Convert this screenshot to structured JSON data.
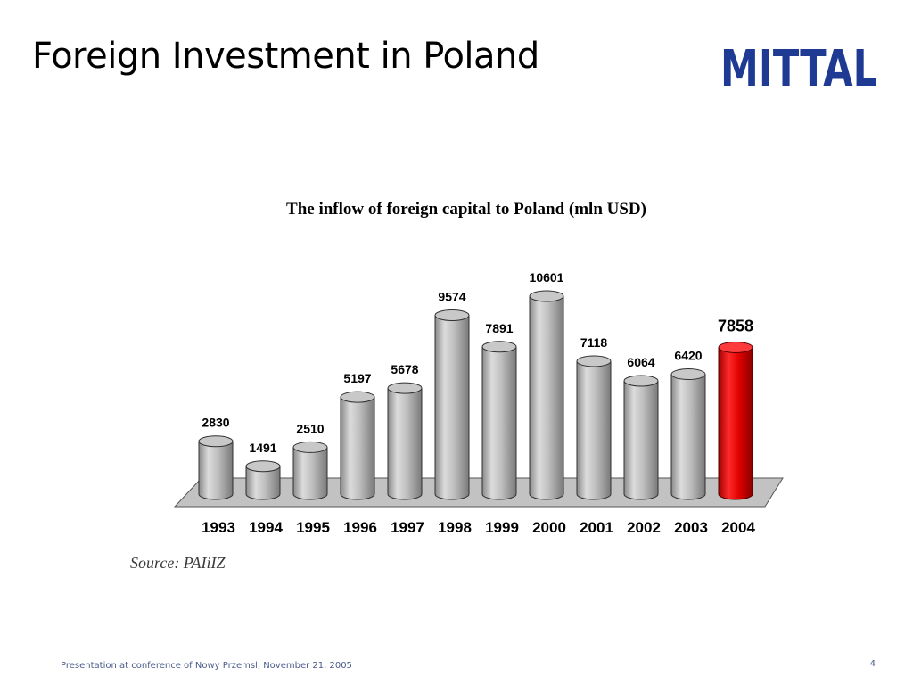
{
  "slide": {
    "title": "Foreign Investment in Poland",
    "logo_text": "MITTAL",
    "footer": "Presentation at conference of Nowy Przemsl, November 21, 2005",
    "page_number": "4"
  },
  "colors": {
    "brand": "#1f3a93",
    "bar_default": "#b4b4b4",
    "bar_highlight": "#e00000"
  },
  "chart_data": {
    "type": "bar",
    "title": "The inflow of foreign capital to Poland (mln USD)",
    "xlabel": "",
    "ylabel": "",
    "categories": [
      "1993",
      "1994",
      "1995",
      "1996",
      "1997",
      "1998",
      "1999",
      "2000",
      "2001",
      "2002",
      "2003",
      "2004"
    ],
    "values": [
      2830,
      1491,
      2510,
      5197,
      5678,
      9574,
      7891,
      10601,
      7118,
      6064,
      6420,
      7858
    ],
    "data_labels": [
      "2830",
      "1491",
      "2510",
      "5197",
      "5678",
      "9574",
      "7891",
      "10601",
      "7118",
      "6064",
      "6420",
      "7858"
    ],
    "highlight_category": "2004",
    "ylim": [
      0,
      10601
    ],
    "grid": false,
    "legend": "none",
    "source": "Source: PAIiIZ"
  }
}
